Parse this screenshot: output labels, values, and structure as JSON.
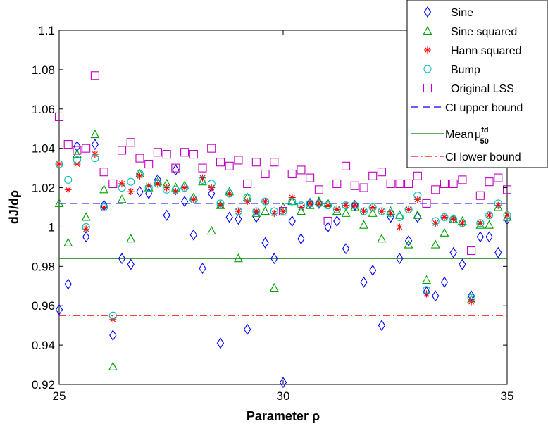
{
  "chart_data": {
    "type": "scatter",
    "title": "",
    "xlabel": "Parameter ρ",
    "ylabel": "dJ/dρ",
    "xlim": [
      25,
      35
    ],
    "ylim": [
      0.92,
      1.1
    ],
    "x_ticks": [
      "25",
      "30",
      "35"
    ],
    "y_ticks": [
      "0.92",
      "0.94",
      "0.96",
      "0.98",
      "1",
      "1.02",
      "1.04",
      "1.06",
      "1.08",
      "1.1"
    ],
    "legend_position": "top-right",
    "series": [
      {
        "name": "Sine",
        "marker": "diamond",
        "color": "#0000ff",
        "x": [
          25.0,
          25.2,
          25.4,
          25.6,
          25.8,
          26.0,
          26.2,
          26.4,
          26.6,
          26.8,
          27.0,
          27.2,
          27.4,
          27.6,
          27.8,
          28.0,
          28.2,
          28.4,
          28.6,
          28.8,
          29.0,
          29.2,
          29.4,
          29.6,
          29.8,
          30.0,
          30.2,
          30.4,
          30.6,
          30.8,
          31.0,
          31.2,
          31.4,
          31.6,
          31.8,
          32.0,
          32.2,
          32.4,
          32.6,
          32.8,
          33.0,
          33.2,
          33.4,
          33.6,
          33.8,
          34.0,
          34.2,
          34.4,
          34.6,
          34.8,
          35.0
        ],
        "y": [
          0.958,
          0.971,
          1.041,
          0.995,
          1.042,
          1.011,
          0.945,
          0.984,
          0.981,
          1.018,
          1.017,
          1.024,
          1.006,
          1.029,
          1.013,
          0.996,
          0.979,
          1.017,
          0.941,
          1.005,
          1.004,
          0.948,
          1.005,
          0.992,
          0.984,
          0.921,
          1.003,
          0.994,
          1.012,
          1.012,
          1.0,
          1.003,
          0.989,
          1.011,
          0.972,
          0.978,
          0.95,
          1.005,
          0.984,
          0.993,
          1.005,
          0.967,
          0.965,
          0.972,
          0.987,
          0.981,
          0.965,
          0.995,
          0.995,
          0.987,
          1.004
        ]
      },
      {
        "name": "Sine squared",
        "marker": "triangle",
        "color": "#00a000",
        "x": [
          25.0,
          25.2,
          25.4,
          25.6,
          25.8,
          26.0,
          26.2,
          26.4,
          26.6,
          26.8,
          27.0,
          27.2,
          27.4,
          27.6,
          27.8,
          28.0,
          28.2,
          28.4,
          28.6,
          28.8,
          29.0,
          29.2,
          29.4,
          29.6,
          29.8,
          30.0,
          30.2,
          30.4,
          30.6,
          30.8,
          31.0,
          31.2,
          31.4,
          31.6,
          31.8,
          32.0,
          32.2,
          32.4,
          32.6,
          32.8,
          33.0,
          33.2,
          33.4,
          33.6,
          33.8,
          34.0,
          34.2,
          34.4,
          34.6,
          34.8,
          35.0
        ],
        "y": [
          1.012,
          0.992,
          1.037,
          1.005,
          1.047,
          1.019,
          0.929,
          1.014,
          0.994,
          1.027,
          1.02,
          1.023,
          1.022,
          1.02,
          1.021,
          1.015,
          1.023,
          0.998,
          1.011,
          1.018,
          0.984,
          1.015,
          1.007,
          1.008,
          0.969,
          1.01,
          1.013,
          1.008,
          1.011,
          1.013,
          1.012,
          1.008,
          1.007,
          1.01,
          1.001,
          1.007,
          0.994,
          1.008,
          1.006,
          0.991,
          1.006,
          0.973,
          0.991,
          0.997,
          1.004,
          1.003,
          0.963,
          1.001,
          1.001,
          1.01,
          1.005
        ]
      },
      {
        "name": "Hann squared",
        "marker": "asterisk",
        "color": "#ff0000",
        "x": [
          25.0,
          25.2,
          25.4,
          25.6,
          25.8,
          26.0,
          26.2,
          26.4,
          26.6,
          26.8,
          27.0,
          27.2,
          27.4,
          27.6,
          27.8,
          28.0,
          28.2,
          28.4,
          28.6,
          28.8,
          29.0,
          29.2,
          29.4,
          29.6,
          29.8,
          30.0,
          30.2,
          30.4,
          30.6,
          30.8,
          31.0,
          31.2,
          31.4,
          31.6,
          31.8,
          32.0,
          32.2,
          32.4,
          32.6,
          32.8,
          33.0,
          33.2,
          33.4,
          33.6,
          33.8,
          34.0,
          34.2,
          34.4,
          34.6,
          34.8,
          35.0
        ],
        "y": [
          1.032,
          1.019,
          1.032,
          0.999,
          1.037,
          1.01,
          0.953,
          1.022,
          1.018,
          1.026,
          1.021,
          1.022,
          1.02,
          1.018,
          1.02,
          1.014,
          1.025,
          1.02,
          1.011,
          1.017,
          1.008,
          1.013,
          1.008,
          1.013,
          1.007,
          1.008,
          1.015,
          1.01,
          1.012,
          1.012,
          1.011,
          1.009,
          1.011,
          1.011,
          1.008,
          1.01,
          1.008,
          1.007,
          1.0,
          1.009,
          1.014,
          0.966,
          1.002,
          1.005,
          1.004,
          1.002,
          0.962,
          1.002,
          1.006,
          1.011,
          1.006
        ]
      },
      {
        "name": "Bump",
        "marker": "circle",
        "color": "#00c0c0",
        "x": [
          25.0,
          25.2,
          25.4,
          25.6,
          25.8,
          26.0,
          26.2,
          26.4,
          26.6,
          26.8,
          27.0,
          27.2,
          27.4,
          27.6,
          27.8,
          28.0,
          28.2,
          28.4,
          28.6,
          28.8,
          29.0,
          29.2,
          29.4,
          29.6,
          29.8,
          30.0,
          30.2,
          30.4,
          30.6,
          30.8,
          31.0,
          31.2,
          31.4,
          31.6,
          31.8,
          32.0,
          32.2,
          32.4,
          32.6,
          32.8,
          33.0,
          33.2,
          33.4,
          33.6,
          33.8,
          34.0,
          34.2,
          34.4,
          34.6,
          34.8,
          35.0
        ],
        "y": [
          1.032,
          1.024,
          1.034,
          1.0,
          1.035,
          1.01,
          0.955,
          1.02,
          1.023,
          1.027,
          1.02,
          1.022,
          1.019,
          1.019,
          1.02,
          1.014,
          1.024,
          1.022,
          1.012,
          1.017,
          1.008,
          1.015,
          1.008,
          1.013,
          1.008,
          1.008,
          1.013,
          1.011,
          1.012,
          1.012,
          1.011,
          1.009,
          1.011,
          1.011,
          1.008,
          1.01,
          1.008,
          1.007,
          1.005,
          1.009,
          1.016,
          0.968,
          1.003,
          1.005,
          1.004,
          1.002,
          0.964,
          1.002,
          1.006,
          1.012,
          1.006
        ]
      },
      {
        "name": "Original LSS",
        "marker": "square",
        "color": "#c000c0",
        "x": [
          25.0,
          25.2,
          25.4,
          25.6,
          25.8,
          26.0,
          26.2,
          26.4,
          26.6,
          26.8,
          27.0,
          27.2,
          27.4,
          27.6,
          27.8,
          28.0,
          28.2,
          28.4,
          28.6,
          28.8,
          29.0,
          29.2,
          29.4,
          29.6,
          29.8,
          30.0,
          30.2,
          30.4,
          30.6,
          30.8,
          31.0,
          31.2,
          31.4,
          31.6,
          31.8,
          32.0,
          32.2,
          32.4,
          32.6,
          32.8,
          33.0,
          33.2,
          33.4,
          33.6,
          33.8,
          34.0,
          34.2,
          34.4,
          34.6,
          34.8,
          35.0
        ],
        "y": [
          1.056,
          1.042,
          1.039,
          1.04,
          1.077,
          1.028,
          1.022,
          1.039,
          1.043,
          1.035,
          1.032,
          1.038,
          1.037,
          1.03,
          1.038,
          1.037,
          1.03,
          1.04,
          1.033,
          1.031,
          1.034,
          1.022,
          1.033,
          1.027,
          1.033,
          1.008,
          1.027,
          1.029,
          1.025,
          1.019,
          1.003,
          1.022,
          1.031,
          1.021,
          1.02,
          1.026,
          1.028,
          1.022,
          1.022,
          1.022,
          1.026,
          1.012,
          1.019,
          1.022,
          1.022,
          1.024,
          0.988,
          1.016,
          1.023,
          1.025,
          1.019
        ]
      }
    ],
    "reference_lines": [
      {
        "name": "CI upper bound",
        "y": 1.012,
        "style": "dashed",
        "color": "#0000ff"
      },
      {
        "name": "Mean",
        "name_sub": "50",
        "name_sup": "fd",
        "y": 0.984,
        "style": "solid",
        "color": "#008000"
      },
      {
        "name": "CI lower bound",
        "y": 0.955,
        "style": "dashdot",
        "color": "#ff0000"
      }
    ]
  }
}
